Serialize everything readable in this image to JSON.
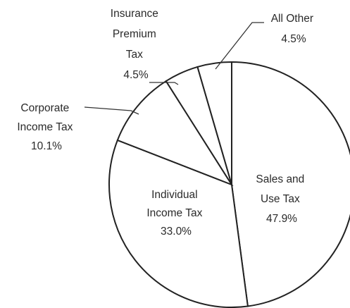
{
  "chart_data": {
    "type": "pie",
    "title": "",
    "slices": [
      {
        "label": "Sales and Use Tax",
        "value": 47.9,
        "pct_label": "47.9%"
      },
      {
        "label": "Individual Income Tax",
        "value": 33.0,
        "pct_label": "33.0%"
      },
      {
        "label": "Corporate Income Tax",
        "value": 10.1,
        "pct_label": "10.1%"
      },
      {
        "label": "Insurance Premium Tax",
        "value": 4.5,
        "pct_label": "4.5%"
      },
      {
        "label": "All Other",
        "value": 4.5,
        "pct_label": "4.5%"
      }
    ],
    "labels": {
      "sales": {
        "line1": "Sales and",
        "line2": "Use Tax",
        "pct": "47.9%"
      },
      "individual": {
        "line1": "Individual",
        "line2": "Income Tax",
        "pct": "33.0%"
      },
      "corporate": {
        "line1": "Corporate",
        "line2": "Income Tax",
        "pct": "10.1%"
      },
      "insurance": {
        "line1": "Insurance",
        "line2": "Premium",
        "line3": "Tax",
        "pct": "4.5%"
      },
      "other": {
        "line1": "All Other",
        "pct": "4.5%"
      }
    },
    "colors": {
      "fill": "#ffffff",
      "stroke": "#222222",
      "text": "#2a2a2a"
    }
  }
}
